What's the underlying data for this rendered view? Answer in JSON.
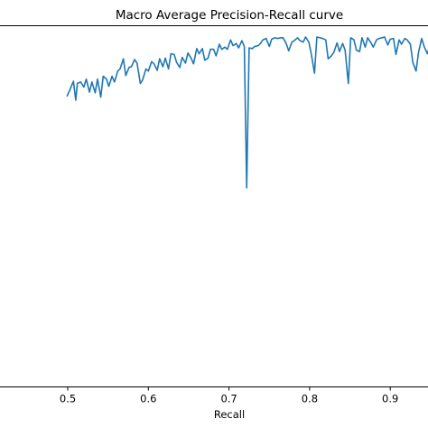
{
  "chart_data": {
    "type": "line",
    "title": "Macro Average Precision-Recall curve",
    "xlabel": "Recall",
    "ylabel": "",
    "xlim": [
      0.0,
      1.0
    ],
    "ylim": [
      0.0,
      1.0
    ],
    "xticks": [
      "0.5",
      "0.6",
      "0.7",
      "0.8",
      "0.9"
    ],
    "grid": false,
    "line_color": "#1f77b4",
    "series": [
      {
        "x": [
          0.499,
          0.503,
          0.507,
          0.51,
          0.512,
          0.516,
          0.52,
          0.523,
          0.527,
          0.53,
          0.534,
          0.537,
          0.541,
          0.544,
          0.548,
          0.551,
          0.555,
          0.558,
          0.562,
          0.565,
          0.569,
          0.572,
          0.576,
          0.579,
          0.583,
          0.586,
          0.59,
          0.593,
          0.597,
          0.6,
          0.604,
          0.607,
          0.611,
          0.614,
          0.618,
          0.621,
          0.625,
          0.628,
          0.632,
          0.635,
          0.639,
          0.642,
          0.646,
          0.649,
          0.653,
          0.656,
          0.66,
          0.663,
          0.667,
          0.67,
          0.674,
          0.677,
          0.681,
          0.684,
          0.688,
          0.691,
          0.695,
          0.698,
          0.702,
          0.705,
          0.709,
          0.712,
          0.716,
          0.719,
          0.722,
          0.725,
          0.729,
          0.732,
          0.736,
          0.739,
          0.742,
          0.746,
          0.75,
          0.753,
          0.757,
          0.76,
          0.764,
          0.767,
          0.771,
          0.774,
          0.778,
          0.781,
          0.785,
          0.788,
          0.792,
          0.795,
          0.799,
          0.802,
          0.806,
          0.809,
          0.813,
          0.816,
          0.82,
          0.823,
          0.827,
          0.83,
          0.834,
          0.837,
          0.841,
          0.844,
          0.848,
          0.851,
          0.855,
          0.858,
          0.862,
          0.865,
          0.869,
          0.872,
          0.876,
          0.879,
          0.883,
          0.886,
          0.89,
          0.893,
          0.897,
          0.9,
          0.904,
          0.907,
          0.911,
          0.914,
          0.918,
          0.921,
          0.925,
          0.928,
          0.932,
          0.935,
          0.939,
          0.942,
          0.946,
          0.949,
          0.952
        ],
        "y": [
          0.893,
          0.903,
          0.914,
          0.888,
          0.911,
          0.913,
          0.906,
          0.917,
          0.899,
          0.913,
          0.898,
          0.917,
          0.892,
          0.921,
          0.917,
          0.907,
          0.921,
          0.913,
          0.928,
          0.931,
          0.945,
          0.922,
          0.933,
          0.934,
          0.944,
          0.939,
          0.911,
          0.916,
          0.931,
          0.928,
          0.941,
          0.938,
          0.929,
          0.945,
          0.934,
          0.946,
          0.931,
          0.952,
          0.951,
          0.94,
          0.933,
          0.947,
          0.939,
          0.953,
          0.946,
          0.938,
          0.959,
          0.952,
          0.959,
          0.943,
          0.946,
          0.958,
          0.958,
          0.949,
          0.965,
          0.958,
          0.961,
          0.958,
          0.971,
          0.963,
          0.966,
          0.96,
          0.97,
          0.962,
          0.767,
          0.96,
          0.959,
          0.962,
          0.963,
          0.966,
          0.971,
          0.973,
          0.962,
          0.972,
          0.974,
          0.973,
          0.974,
          0.974,
          0.966,
          0.956,
          0.968,
          0.97,
          0.974,
          0.97,
          0.968,
          0.975,
          0.968,
          0.952,
          0.925,
          0.975,
          0.974,
          0.973,
          0.971,
          0.945,
          0.949,
          0.954,
          0.967,
          0.955,
          0.966,
          0.957,
          0.911,
          0.974,
          0.971,
          0.957,
          0.955,
          0.974,
          0.961,
          0.974,
          0.967,
          0.961,
          0.971,
          0.973,
          0.974,
          0.975,
          0.964,
          0.972,
          0.973,
          0.951,
          0.971,
          0.965,
          0.973,
          0.971,
          0.965,
          0.94,
          0.928,
          0.954,
          0.973,
          0.962,
          0.952,
          0.963,
          0.932
        ],
        "y_note_ignore": ""
      }
    ]
  }
}
